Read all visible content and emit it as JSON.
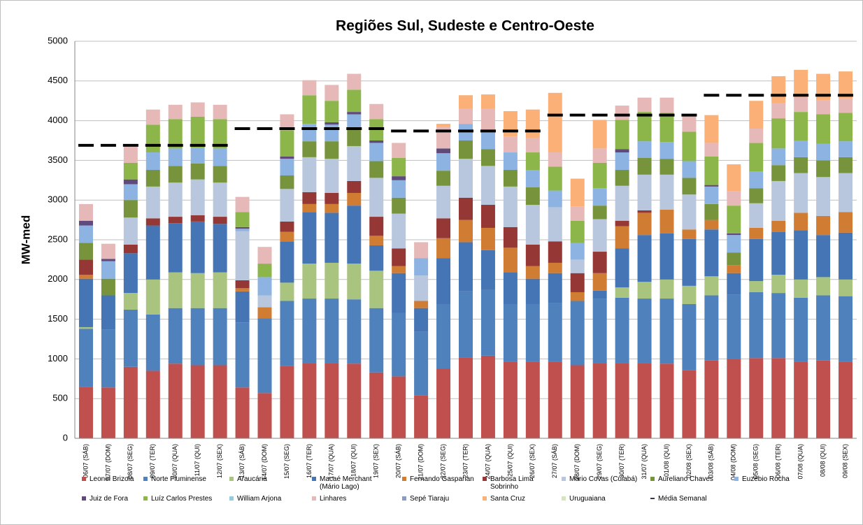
{
  "chart_data": {
    "type": "stacked_bar",
    "title": "Regiões Sul, Sudeste e Centro-Oeste",
    "y_label": "MW-med",
    "ylim": [
      0,
      5000
    ],
    "yticks": [
      0,
      500,
      1000,
      1500,
      2000,
      2500,
      3000,
      3500,
      4000,
      4500,
      5000
    ],
    "grid": true,
    "categories": [
      "06/07 (SÁB)",
      "07/07 (DOM)",
      "08/07 (SEG)",
      "09/07 (TER)",
      "10/07 (QUA)",
      "11/07 (QUI)",
      "12/07 (SEX)",
      "13/07 (SÁB)",
      "14/07 (DOM)",
      "15/07 (SEG)",
      "16/07 (TER)",
      "17/07 (QUA)",
      "18/07 (QUI)",
      "19/07 (SEX)",
      "20/07 (SÁB)",
      "21/07 (DOM)",
      "22/07 (SEG)",
      "23/07 (TER)",
      "24/07 (QUA)",
      "25/07 (QUI)",
      "26/07 (SEX)",
      "27/07 (SÁB)",
      "28/07 (DOM)",
      "29/07 (SEG)",
      "30/07 (TER)",
      "31/07 (QUA)",
      "01/08 (QUI)",
      "02/08 (SEX)",
      "03/08 (SÁB)",
      "04/08 (DOM)",
      "05/08 (SEG)",
      "06/08 (TER)",
      "07/08 (QUA)",
      "08/08 (QUI)",
      "09/08 (SEX)"
    ],
    "series": [
      {
        "name": "Leonel Brizola",
        "color": "#c0504d",
        "values": [
          650,
          640,
          900,
          850,
          940,
          920,
          920,
          640,
          570,
          910,
          950,
          950,
          940,
          830,
          780,
          540,
          880,
          1020,
          1040,
          960,
          960,
          960,
          920,
          950,
          950,
          950,
          940,
          860,
          980,
          1000,
          1010,
          1010,
          960,
          980,
          960
        ]
      },
      {
        "name": "Norte Fluminense",
        "color": "#4f81bd",
        "values": [
          730,
          730,
          720,
          710,
          700,
          720,
          720,
          820,
          940,
          820,
          810,
          810,
          810,
          810,
          800,
          800,
          810,
          830,
          830,
          730,
          730,
          740,
          810,
          810,
          820,
          810,
          820,
          830,
          820,
          810,
          830,
          820,
          810,
          820,
          830
        ]
      },
      {
        "name": "Araucária",
        "color": "#a9c47f",
        "values": [
          20,
          0,
          210,
          440,
          450,
          440,
          450,
          0,
          0,
          230,
          440,
          450,
          450,
          470,
          0,
          0,
          0,
          0,
          0,
          0,
          0,
          0,
          0,
          0,
          130,
          210,
          240,
          230,
          240,
          0,
          140,
          230,
          230,
          230,
          210
        ]
      },
      {
        "name": "Macaé Merchant (Mário Lago)",
        "color": "#4675b6",
        "values": [
          610,
          430,
          500,
          680,
          620,
          650,
          610,
          390,
          0,
          520,
          650,
          630,
          730,
          320,
          500,
          300,
          580,
          620,
          500,
          400,
          320,
          380,
          0,
          100,
          490,
          590,
          580,
          590,
          590,
          270,
          530,
          540,
          620,
          530,
          590
        ]
      },
      {
        "name": "Fernando Gasparian",
        "color": "#d07c32",
        "values": [
          50,
          0,
          0,
          0,
          0,
          0,
          0,
          40,
          140,
          120,
          100,
          110,
          160,
          120,
          90,
          90,
          250,
          280,
          280,
          310,
          160,
          130,
          110,
          220,
          280,
          280,
          300,
          120,
          120,
          100,
          140,
          140,
          220,
          240,
          260
        ]
      },
      {
        "name": "Barbosa Lima Sobrinho",
        "color": "#953735",
        "values": [
          190,
          0,
          110,
          90,
          80,
          80,
          90,
          100,
          0,
          130,
          150,
          140,
          150,
          240,
          220,
          0,
          250,
          280,
          290,
          260,
          270,
          270,
          240,
          270,
          70,
          30,
          0,
          0,
          0,
          0,
          0,
          0,
          0,
          0,
          0
        ]
      },
      {
        "name": "Mário Covas (Cuiabá)",
        "color": "#b8c7de",
        "values": [
          0,
          0,
          340,
          400,
          430,
          450,
          430,
          620,
          150,
          410,
          440,
          430,
          440,
          490,
          440,
          320,
          410,
          490,
          490,
          510,
          500,
          430,
          170,
          410,
          440,
          450,
          440,
          440,
          0,
          0,
          310,
          500,
          500,
          490,
          490
        ]
      },
      {
        "name": "Aureliano Chaves",
        "color": "#77933c",
        "values": [
          210,
          210,
          220,
          210,
          210,
          200,
          210,
          0,
          0,
          170,
          200,
          220,
          210,
          210,
          200,
          0,
          190,
          230,
          210,
          210,
          220,
          0,
          0,
          170,
          200,
          210,
          200,
          210,
          200,
          160,
          190,
          200,
          200,
          210,
          200
        ]
      },
      {
        "name": "Euzébio Rocha",
        "color": "#8db3e2",
        "values": [
          220,
          220,
          200,
          220,
          220,
          200,
          220,
          30,
          230,
          210,
          220,
          210,
          190,
          230,
          220,
          220,
          220,
          210,
          230,
          220,
          220,
          210,
          210,
          220,
          220,
          210,
          210,
          210,
          220,
          220,
          210,
          210,
          210,
          210,
          200
        ]
      },
      {
        "name": "Juiz de Fora",
        "color": "#604a7b",
        "values": [
          60,
          30,
          60,
          0,
          0,
          0,
          0,
          20,
          0,
          30,
          0,
          30,
          30,
          30,
          50,
          0,
          60,
          0,
          0,
          0,
          0,
          0,
          0,
          0,
          40,
          0,
          0,
          0,
          20,
          20,
          0,
          0,
          0,
          0,
          0
        ]
      },
      {
        "name": "Luíz Carlos Prestes",
        "color": "#8cb64a",
        "values": [
          0,
          0,
          210,
          350,
          370,
          390,
          370,
          190,
          170,
          330,
          360,
          270,
          280,
          270,
          230,
          0,
          0,
          0,
          0,
          0,
          220,
          300,
          280,
          320,
          370,
          370,
          370,
          370,
          360,
          350,
          360,
          380,
          360,
          370,
          360
        ]
      },
      {
        "name": "William Arjona",
        "color": "#93cddd",
        "values": [
          0,
          0,
          0,
          0,
          0,
          0,
          0,
          0,
          0,
          0,
          0,
          0,
          0,
          0,
          0,
          0,
          0,
          0,
          0,
          0,
          0,
          0,
          0,
          0,
          0,
          0,
          0,
          0,
          0,
          0,
          0,
          0,
          0,
          0,
          0
        ]
      },
      {
        "name": "Linhares",
        "color": "#e6b9b8",
        "values": [
          210,
          190,
          200,
          190,
          180,
          180,
          180,
          190,
          210,
          200,
          190,
          200,
          200,
          190,
          190,
          200,
          270,
          190,
          280,
          200,
          180,
          180,
          180,
          180,
          180,
          180,
          190,
          200,
          170,
          180,
          180,
          190,
          190,
          180,
          180
        ]
      },
      {
        "name": "Sepé Tiaraju",
        "color": "#8a9bc4",
        "values": [
          0,
          0,
          0,
          0,
          0,
          0,
          0,
          0,
          0,
          0,
          0,
          0,
          0,
          0,
          0,
          0,
          0,
          0,
          0,
          0,
          0,
          0,
          0,
          0,
          0,
          0,
          0,
          0,
          0,
          0,
          0,
          0,
          0,
          0,
          0
        ]
      },
      {
        "name": "Santa Cruz",
        "color": "#fab076",
        "values": [
          0,
          0,
          0,
          0,
          0,
          0,
          0,
          0,
          0,
          0,
          0,
          0,
          0,
          0,
          0,
          0,
          40,
          170,
          180,
          320,
          360,
          750,
          350,
          360,
          0,
          0,
          0,
          0,
          350,
          340,
          350,
          340,
          340,
          330,
          340
        ]
      },
      {
        "name": "Uruguaiana",
        "color": "#d7e4bd",
        "values": [
          0,
          0,
          0,
          0,
          0,
          0,
          0,
          0,
          0,
          0,
          0,
          0,
          0,
          0,
          0,
          0,
          0,
          0,
          0,
          0,
          0,
          0,
          0,
          0,
          0,
          0,
          0,
          0,
          0,
          0,
          0,
          0,
          0,
          0,
          0
        ]
      },
      {
        "name": "Média Semanal",
        "color": "#000000",
        "kind": "line",
        "values": [
          3690,
          3690,
          3690,
          3690,
          3690,
          3690,
          3690,
          3900,
          3900,
          3900,
          3900,
          3900,
          3900,
          3900,
          3870,
          3870,
          3870,
          3870,
          3870,
          3870,
          3870,
          4070,
          4070,
          4070,
          4070,
          4070,
          4070,
          4070,
          4320,
          4320,
          4320,
          4320,
          4320,
          4320,
          4320
        ]
      }
    ]
  }
}
